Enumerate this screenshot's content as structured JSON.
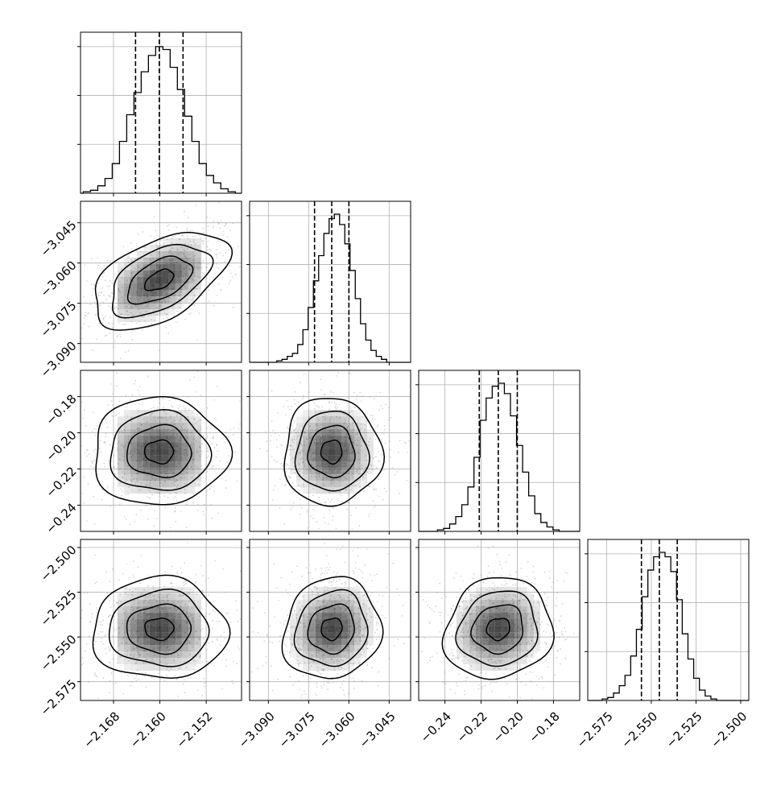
{
  "chart_data": {
    "type": "corner",
    "title": "",
    "parameters": [
      {
        "range": [
          -2.1737,
          -2.1459
        ],
        "ticks": [
          -2.168,
          -2.16,
          -2.152
        ],
        "tick_labels": [
          "−2.168",
          "−2.160",
          "−2.152"
        ],
        "quantiles": [
          -2.1642,
          -2.1601,
          -2.156
        ],
        "hist_values": [
          0.01,
          0.02,
          0.05,
          0.1,
          0.2,
          0.35,
          0.53,
          0.68,
          0.82,
          0.93,
          0.99,
          0.97,
          0.85,
          0.7,
          0.52,
          0.35,
          0.2,
          0.12,
          0.07,
          0.03,
          0.01
        ]
      },
      {
        "range": [
          -3.097,
          -3.037
        ],
        "ticks": [
          -3.09,
          -3.075,
          -3.06,
          -3.045
        ],
        "tick_labels": [
          "−3.090",
          "−3.075",
          "−3.060",
          "−3.045"
        ],
        "quantiles": [
          -3.0728,
          -3.0664,
          -3.06
        ],
        "hist_values": [
          0.01,
          0.02,
          0.04,
          0.06,
          0.12,
          0.22,
          0.37,
          0.55,
          0.72,
          0.87,
          0.97,
          1.0,
          0.93,
          0.8,
          0.62,
          0.43,
          0.26,
          0.15,
          0.08,
          0.04,
          0.02
        ]
      },
      {
        "range": [
          -0.2545,
          -0.1655
        ],
        "ticks": [
          -0.24,
          -0.22,
          -0.2,
          -0.18
        ],
        "tick_labels": [
          "−0.24",
          "−0.22",
          "−0.20",
          "−0.18"
        ],
        "quantiles": [
          -0.221,
          -0.2105,
          -0.2
        ],
        "hist_values": [
          0.01,
          0.02,
          0.05,
          0.1,
          0.18,
          0.3,
          0.5,
          0.75,
          0.9,
          0.98,
          1.0,
          0.93,
          0.78,
          0.58,
          0.4,
          0.24,
          0.12,
          0.06,
          0.03,
          0.01
        ]
      },
      {
        "range": [
          -2.5855,
          -2.4955
        ],
        "ticks": [
          -2.575,
          -2.55,
          -2.525,
          -2.5
        ],
        "tick_labels": [
          "−2.575",
          "−2.550",
          "−2.525",
          "−2.500"
        ],
        "quantiles": [
          -2.5555,
          -2.5455,
          -2.5355
        ],
        "hist_values": [
          0.01,
          0.02,
          0.05,
          0.1,
          0.17,
          0.3,
          0.48,
          0.7,
          0.88,
          0.97,
          1.0,
          0.97,
          0.87,
          0.68,
          0.45,
          0.28,
          0.15,
          0.07,
          0.03,
          0.01
        ]
      }
    ],
    "pair_correlations": {
      "1_0": 0.5,
      "2_0": 0.0,
      "2_1": 0.0,
      "3_0": 0.0,
      "3_1": 0.1,
      "3_2": 0.1
    },
    "contour_levels": [
      0.11,
      0.39,
      0.68,
      0.86
    ],
    "grid": true,
    "colors": {
      "ink": "#000000",
      "grid": "#b0b0b0",
      "scatter": "#8a8a8a"
    }
  }
}
